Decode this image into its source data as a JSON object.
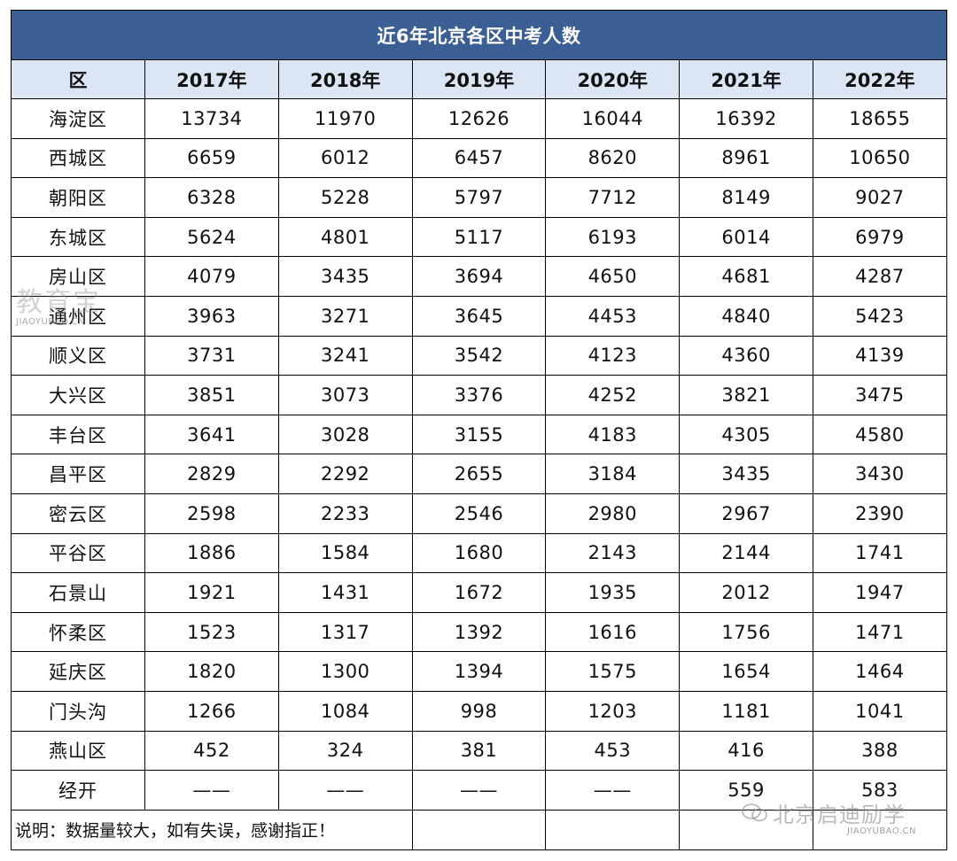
{
  "table": {
    "title": "近6年北京各区中考人数",
    "header": [
      "区",
      "2017年",
      "2018年",
      "2019年",
      "2020年",
      "2021年",
      "2022年"
    ],
    "rows": [
      [
        "海淀区",
        "13734",
        "11970",
        "12626",
        "16044",
        "16392",
        "18655"
      ],
      [
        "西城区",
        "6659",
        "6012",
        "6457",
        "8620",
        "8961",
        "10650"
      ],
      [
        "朝阳区",
        "6328",
        "5228",
        "5797",
        "7712",
        "8149",
        "9027"
      ],
      [
        "东城区",
        "5624",
        "4801",
        "5117",
        "6193",
        "6014",
        "6979"
      ],
      [
        "房山区",
        "4079",
        "3435",
        "3694",
        "4650",
        "4681",
        "4287"
      ],
      [
        "通州区",
        "3963",
        "3271",
        "3645",
        "4453",
        "4840",
        "5423"
      ],
      [
        "顺义区",
        "3731",
        "3241",
        "3542",
        "4123",
        "4360",
        "4139"
      ],
      [
        "大兴区",
        "3851",
        "3073",
        "3376",
        "4252",
        "3821",
        "3475"
      ],
      [
        "丰台区",
        "3641",
        "3028",
        "3155",
        "4183",
        "4305",
        "4580"
      ],
      [
        "昌平区",
        "2829",
        "2292",
        "2655",
        "3184",
        "3435",
        "3430"
      ],
      [
        "密云区",
        "2598",
        "2233",
        "2546",
        "2980",
        "2967",
        "2390"
      ],
      [
        "平谷区",
        "1886",
        "1584",
        "1680",
        "2143",
        "2144",
        "1741"
      ],
      [
        "石景山",
        "1921",
        "1431",
        "1672",
        "1935",
        "2012",
        "1947"
      ],
      [
        "怀柔区",
        "1523",
        "1317",
        "1392",
        "1616",
        "1756",
        "1471"
      ],
      [
        "延庆区",
        "1820",
        "1300",
        "1394",
        "1575",
        "1654",
        "1464"
      ],
      [
        "门头沟",
        "1266",
        "1084",
        "998",
        "1203",
        "1181",
        "1041"
      ],
      [
        "燕山区",
        "452",
        "324",
        "381",
        "453",
        "416",
        "388"
      ],
      [
        "经开",
        "——",
        "——",
        "——",
        "——",
        "559",
        "583"
      ]
    ],
    "note": "说明：数据量较大，如有失误，感谢指正！"
  },
  "watermarks": {
    "left_cn": "教育宝",
    "left_en": "JIAOYUBAO.CN",
    "right_cn": "北京启迪励学",
    "right_en": "JIAOYUBAO.CN"
  },
  "colors": {
    "title_bg": "#3b5e95",
    "title_text": "#ffffff",
    "header_bg": "#dbe5f3",
    "border": "#000000"
  }
}
